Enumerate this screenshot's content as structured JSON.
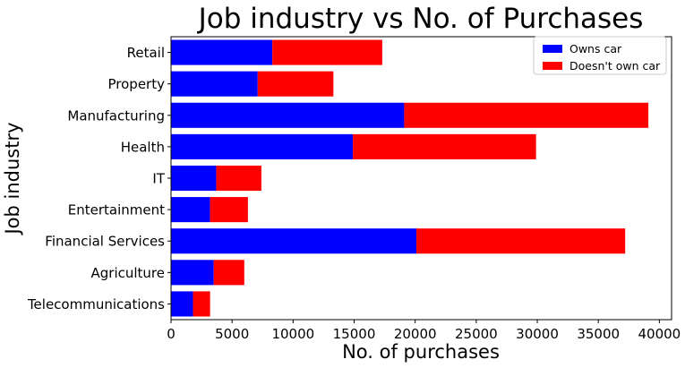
{
  "chart_data": {
    "type": "bar",
    "orientation": "horizontal",
    "stacked": true,
    "title": "Job industry vs No. of Purchases",
    "xlabel": "No. of purchases",
    "ylabel": "Job industry",
    "xlim": [
      0,
      41000
    ],
    "xticks": [
      0,
      5000,
      10000,
      15000,
      20000,
      25000,
      30000,
      35000,
      40000
    ],
    "grid": false,
    "legend_position": "top-right",
    "categories": [
      "Retail",
      "Property",
      "Manufacturing",
      "Health",
      "IT",
      "Entertainment",
      "Financial Services",
      "Agriculture",
      "Telecommunications"
    ],
    "series": [
      {
        "name": "Owns car",
        "color": "#0000ff",
        "values": [
          8300,
          7100,
          19100,
          14900,
          3700,
          3200,
          20100,
          3500,
          1800
        ]
      },
      {
        "name": "Doesn't own car",
        "color": "#ff0000",
        "values": [
          9000,
          6200,
          20000,
          15000,
          3700,
          3100,
          17100,
          2500,
          1400
        ]
      }
    ]
  }
}
